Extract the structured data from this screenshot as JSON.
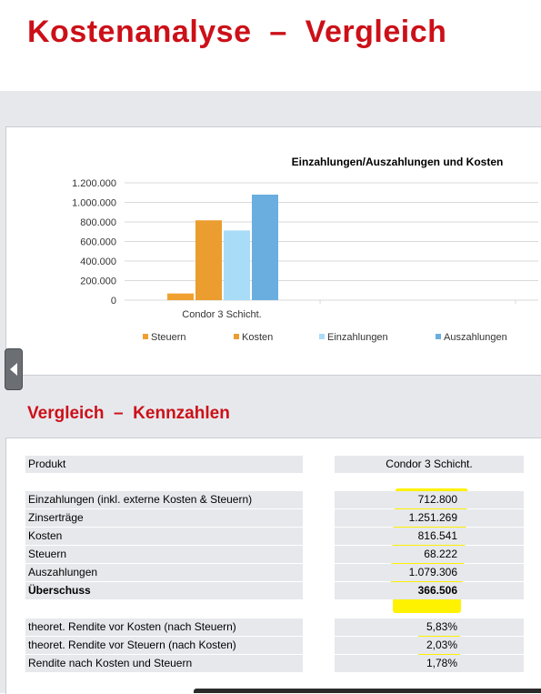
{
  "page": {
    "title": "Kostenanalyse  –  Vergleich"
  },
  "chart_data": {
    "type": "bar",
    "title": "Einzahlungen/Auszahlungen und Kosten",
    "categories": [
      "Condor 3 Schicht."
    ],
    "series": [
      {
        "name": "Steuern",
        "values": [
          68222
        ],
        "color": "#f0a030"
      },
      {
        "name": "Kosten",
        "values": [
          816541
        ],
        "color": "#eb9d2f"
      },
      {
        "name": "Einzahlungen",
        "values": [
          712800
        ],
        "color": "#a9dcf7"
      },
      {
        "name": "Auszahlungen",
        "values": [
          1079306
        ],
        "color": "#6aaee0"
      }
    ],
    "ylim": [
      0,
      1200000
    ],
    "yticks": [
      "0",
      "200.000",
      "400.000",
      "600.000",
      "800.000",
      "1.000.000",
      "1.200.000"
    ],
    "grid": true,
    "legend": "bottom"
  },
  "section": {
    "title": "Vergleich  –  Kennzahlen"
  },
  "table": {
    "header": {
      "label": "Produkt",
      "value": "Condor 3 Schicht."
    },
    "rows_main": [
      {
        "label": "Einzahlungen (inkl. externe Kosten & Steuern)",
        "value": "712.800"
      },
      {
        "label": "Zinserträge",
        "value": "1.251.269"
      },
      {
        "label": "Kosten",
        "value": "816.541"
      },
      {
        "label": "Steuern",
        "value": "68.222"
      },
      {
        "label": "Auszahlungen",
        "value": "1.079.306"
      },
      {
        "label": "Überschuss",
        "value": "366.506"
      }
    ],
    "rows_rendite": [
      {
        "label": "theoret. Rendite vor Kosten (nach Steuern)",
        "value": "5,83%"
      },
      {
        "label": "theoret. Rendite vor Steuern (nach Kosten)",
        "value": "2,03%"
      },
      {
        "label": "Rendite nach Kosten und Steuern",
        "value": "1,78%"
      }
    ]
  },
  "highlight_color": "#fff200"
}
